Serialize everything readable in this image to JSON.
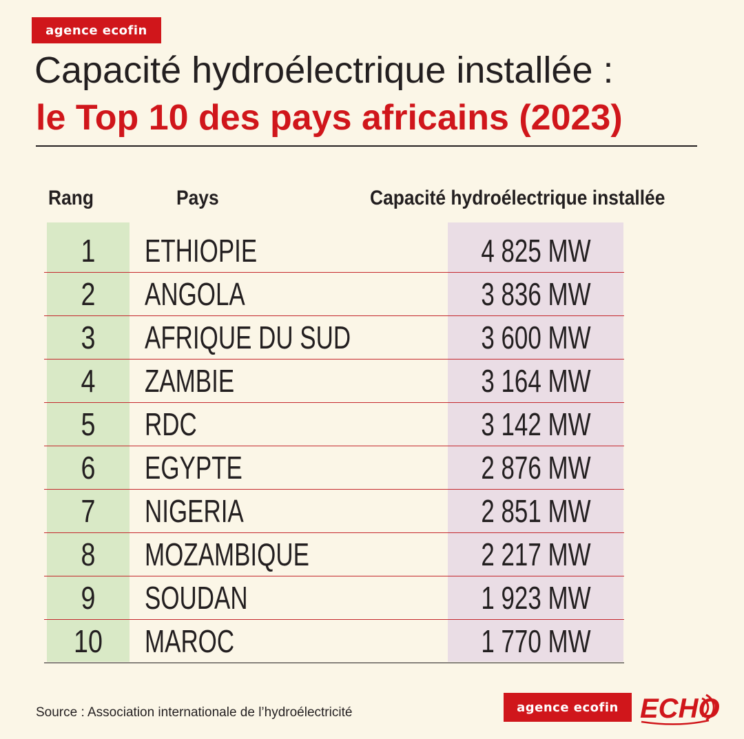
{
  "header": {
    "brand": "agence ecofin",
    "title_line1": "Capacité hydroélectrique installée :",
    "title_line2": "le Top 10 des pays africains (2023)"
  },
  "table": {
    "headers": {
      "rank": "Rang",
      "country": "Pays",
      "capacity": "Capacité hydroélectrique installée"
    },
    "rows": [
      {
        "rank": "1",
        "country": "ETHIOPIE",
        "capacity": "4 825 MW"
      },
      {
        "rank": "2",
        "country": "ANGOLA",
        "capacity": "3 836 MW"
      },
      {
        "rank": "3",
        "country": "AFRIQUE DU SUD",
        "capacity": "3 600 MW"
      },
      {
        "rank": "4",
        "country": "ZAMBIE",
        "capacity": "3 164 MW"
      },
      {
        "rank": "5",
        "country": "RDC",
        "capacity": "3 142 MW"
      },
      {
        "rank": "6",
        "country": "EGYPTE",
        "capacity": "2 876 MW"
      },
      {
        "rank": "7",
        "country": "NIGERIA",
        "capacity": "2 851 MW"
      },
      {
        "rank": "8",
        "country": "MOZAMBIQUE",
        "capacity": "2 217 MW"
      },
      {
        "rank": "9",
        "country": "SOUDAN",
        "capacity": "1 923 MW"
      },
      {
        "rank": "10",
        "country": "MAROC",
        "capacity": "1 770 MW"
      }
    ]
  },
  "footer": {
    "source": "Source : Association internationale de l’hydroélectricité",
    "brand": "agence ecofin",
    "echo_logo": "ECHO"
  },
  "colors": {
    "accent_red": "#d0161b",
    "background": "#fbf6e7",
    "rank_column_bg": "#d9e9c6",
    "capacity_column_bg": "#eadde5"
  }
}
